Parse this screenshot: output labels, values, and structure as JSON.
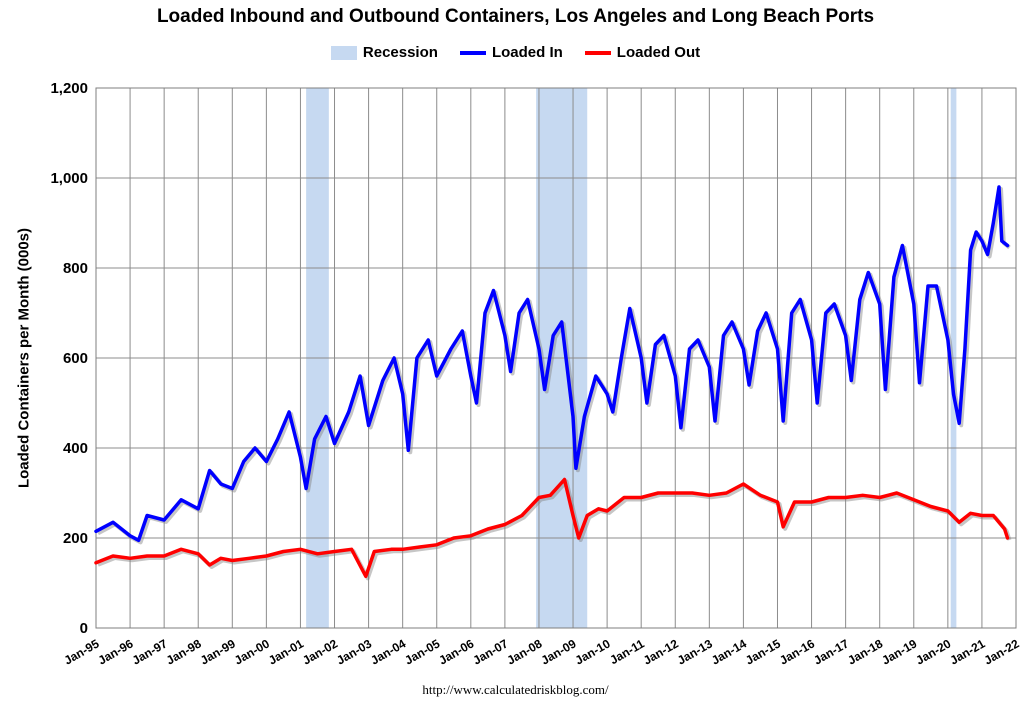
{
  "chart_data": {
    "type": "line",
    "title": "Loaded Inbound and Outbound Containers, Los Angeles and Long Beach Ports",
    "xlabel": "",
    "ylabel": "Loaded Containers per Month (000s)",
    "ylim": [
      0,
      1200
    ],
    "yticks": [
      "0",
      "200",
      "400",
      "600",
      "800",
      "1,000",
      "1,200"
    ],
    "xticks": [
      "Jan-95",
      "Jan-96",
      "Jan-97",
      "Jan-98",
      "Jan-99",
      "Jan-00",
      "Jan-01",
      "Jan-02",
      "Jan-03",
      "Jan-04",
      "Jan-05",
      "Jan-06",
      "Jan-07",
      "Jan-08",
      "Jan-09",
      "Jan-10",
      "Jan-11",
      "Jan-12",
      "Jan-13",
      "Jan-14",
      "Jan-15",
      "Jan-16",
      "Jan-17",
      "Jan-18",
      "Jan-19",
      "Jan-20",
      "Jan-21",
      "Jan-22"
    ],
    "grid": true,
    "legend_position": "top-center",
    "legend": [
      "Recession",
      "Loaded In",
      "Loaded Out"
    ],
    "recessions": [
      {
        "start": "2001-03",
        "end": "2001-11"
      },
      {
        "start": "2007-12",
        "end": "2009-06"
      },
      {
        "start": "2020-02",
        "end": "2020-04"
      }
    ],
    "series": [
      {
        "name": "Loaded In",
        "color": "#0000ff",
        "points": [
          [
            "1995-01",
            215
          ],
          [
            "1995-07",
            235
          ],
          [
            "1996-01",
            205
          ],
          [
            "1996-04",
            195
          ],
          [
            "1996-07",
            250
          ],
          [
            "1997-01",
            240
          ],
          [
            "1997-07",
            285
          ],
          [
            "1998-01",
            265
          ],
          [
            "1998-05",
            350
          ],
          [
            "1998-09",
            320
          ],
          [
            "1999-01",
            310
          ],
          [
            "1999-05",
            370
          ],
          [
            "1999-09",
            400
          ],
          [
            "2000-01",
            370
          ],
          [
            "2000-05",
            420
          ],
          [
            "2000-09",
            480
          ],
          [
            "2001-01",
            380
          ],
          [
            "2001-03",
            310
          ],
          [
            "2001-06",
            420
          ],
          [
            "2001-10",
            470
          ],
          [
            "2002-01",
            410
          ],
          [
            "2002-06",
            480
          ],
          [
            "2002-10",
            560
          ],
          [
            "2003-01",
            450
          ],
          [
            "2003-06",
            550
          ],
          [
            "2003-10",
            600
          ],
          [
            "2004-01",
            520
          ],
          [
            "2004-03",
            395
          ],
          [
            "2004-06",
            600
          ],
          [
            "2004-10",
            640
          ],
          [
            "2005-01",
            560
          ],
          [
            "2005-06",
            620
          ],
          [
            "2005-10",
            660
          ],
          [
            "2006-01",
            560
          ],
          [
            "2006-03",
            500
          ],
          [
            "2006-06",
            700
          ],
          [
            "2006-09",
            750
          ],
          [
            "2007-01",
            650
          ],
          [
            "2007-03",
            570
          ],
          [
            "2007-06",
            700
          ],
          [
            "2007-09",
            730
          ],
          [
            "2008-01",
            620
          ],
          [
            "2008-03",
            530
          ],
          [
            "2008-06",
            650
          ],
          [
            "2008-09",
            680
          ],
          [
            "2009-01",
            470
          ],
          [
            "2009-02",
            355
          ],
          [
            "2009-05",
            470
          ],
          [
            "2009-09",
            560
          ],
          [
            "2010-01",
            520
          ],
          [
            "2010-03",
            480
          ],
          [
            "2010-06",
            600
          ],
          [
            "2010-09",
            710
          ],
          [
            "2011-01",
            600
          ],
          [
            "2011-03",
            500
          ],
          [
            "2011-06",
            630
          ],
          [
            "2011-09",
            650
          ],
          [
            "2012-01",
            560
          ],
          [
            "2012-03",
            445
          ],
          [
            "2012-06",
            620
          ],
          [
            "2012-09",
            640
          ],
          [
            "2013-01",
            580
          ],
          [
            "2013-03",
            460
          ],
          [
            "2013-06",
            650
          ],
          [
            "2013-09",
            680
          ],
          [
            "2014-01",
            620
          ],
          [
            "2014-03",
            540
          ],
          [
            "2014-06",
            660
          ],
          [
            "2014-09",
            700
          ],
          [
            "2015-01",
            620
          ],
          [
            "2015-03",
            460
          ],
          [
            "2015-06",
            700
          ],
          [
            "2015-09",
            730
          ],
          [
            "2016-01",
            640
          ],
          [
            "2016-03",
            500
          ],
          [
            "2016-06",
            700
          ],
          [
            "2016-09",
            720
          ],
          [
            "2017-01",
            650
          ],
          [
            "2017-03",
            550
          ],
          [
            "2017-06",
            730
          ],
          [
            "2017-09",
            790
          ],
          [
            "2018-01",
            720
          ],
          [
            "2018-03",
            530
          ],
          [
            "2018-06",
            780
          ],
          [
            "2018-09",
            850
          ],
          [
            "2019-01",
            720
          ],
          [
            "2019-03",
            545
          ],
          [
            "2019-06",
            760
          ],
          [
            "2019-09",
            760
          ],
          [
            "2020-01",
            640
          ],
          [
            "2020-03",
            520
          ],
          [
            "2020-05",
            455
          ],
          [
            "2020-07",
            620
          ],
          [
            "2020-09",
            840
          ],
          [
            "2020-11",
            880
          ],
          [
            "2021-01",
            860
          ],
          [
            "2021-03",
            830
          ],
          [
            "2021-05",
            900
          ],
          [
            "2021-07",
            980
          ],
          [
            "2021-08",
            860
          ],
          [
            "2021-10",
            850
          ]
        ]
      },
      {
        "name": "Loaded Out",
        "color": "#ff0000",
        "points": [
          [
            "1995-01",
            145
          ],
          [
            "1995-07",
            160
          ],
          [
            "1996-01",
            155
          ],
          [
            "1996-07",
            160
          ],
          [
            "1997-01",
            160
          ],
          [
            "1997-07",
            175
          ],
          [
            "1998-01",
            165
          ],
          [
            "1998-05",
            140
          ],
          [
            "1998-09",
            155
          ],
          [
            "1999-01",
            150
          ],
          [
            "1999-07",
            155
          ],
          [
            "2000-01",
            160
          ],
          [
            "2000-07",
            170
          ],
          [
            "2001-01",
            175
          ],
          [
            "2001-07",
            165
          ],
          [
            "2002-01",
            170
          ],
          [
            "2002-07",
            175
          ],
          [
            "2002-12",
            115
          ],
          [
            "2003-03",
            170
          ],
          [
            "2003-09",
            175
          ],
          [
            "2004-01",
            175
          ],
          [
            "2004-07",
            180
          ],
          [
            "2005-01",
            185
          ],
          [
            "2005-07",
            200
          ],
          [
            "2006-01",
            205
          ],
          [
            "2006-07",
            220
          ],
          [
            "2007-01",
            230
          ],
          [
            "2007-07",
            250
          ],
          [
            "2008-01",
            290
          ],
          [
            "2008-05",
            295
          ],
          [
            "2008-10",
            330
          ],
          [
            "2009-01",
            250
          ],
          [
            "2009-03",
            200
          ],
          [
            "2009-06",
            250
          ],
          [
            "2009-10",
            265
          ],
          [
            "2010-01",
            260
          ],
          [
            "2010-07",
            290
          ],
          [
            "2011-01",
            290
          ],
          [
            "2011-07",
            300
          ],
          [
            "2012-01",
            300
          ],
          [
            "2012-07",
            300
          ],
          [
            "2013-01",
            295
          ],
          [
            "2013-07",
            300
          ],
          [
            "2014-01",
            320
          ],
          [
            "2014-07",
            295
          ],
          [
            "2015-01",
            280
          ],
          [
            "2015-03",
            225
          ],
          [
            "2015-07",
            280
          ],
          [
            "2016-01",
            280
          ],
          [
            "2016-07",
            290
          ],
          [
            "2017-01",
            290
          ],
          [
            "2017-07",
            295
          ],
          [
            "2018-01",
            290
          ],
          [
            "2018-07",
            300
          ],
          [
            "2019-01",
            285
          ],
          [
            "2019-07",
            270
          ],
          [
            "2020-01",
            260
          ],
          [
            "2020-05",
            235
          ],
          [
            "2020-09",
            255
          ],
          [
            "2021-01",
            250
          ],
          [
            "2021-05",
            250
          ],
          [
            "2021-09",
            220
          ],
          [
            "2021-10",
            200
          ]
        ]
      }
    ]
  },
  "source_text": "http://www.calculatedriskblog.com/"
}
